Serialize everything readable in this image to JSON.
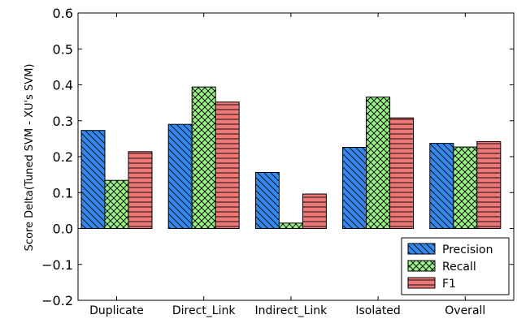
{
  "chart_data": {
    "type": "bar",
    "ylabel": "Score Delta(Tuned SVM - XU's SVM)",
    "xlabel": "",
    "ylim": [
      -0.2,
      0.6
    ],
    "yticks": [
      -0.2,
      -0.1,
      0.0,
      0.1,
      0.2,
      0.3,
      0.4,
      0.5,
      0.6
    ],
    "categories": [
      "Duplicate",
      "Direct_Link",
      "Indirect_Link",
      "Isolated",
      "Overall"
    ],
    "series": [
      {
        "name": "Precision",
        "color": "#3388ee",
        "hatch": "backslash",
        "values": [
          0.273,
          0.29,
          0.156,
          0.226,
          0.237
        ]
      },
      {
        "name": "Recall",
        "color": "#99ee88",
        "hatch": "cross",
        "values": [
          0.134,
          0.394,
          0.015,
          0.366,
          0.227
        ]
      },
      {
        "name": "F1",
        "color": "#ee7777",
        "hatch": "horizontal",
        "values": [
          0.214,
          0.352,
          0.096,
          0.308,
          0.242
        ]
      }
    ],
    "legend": "bottom-right",
    "grid": false
  }
}
